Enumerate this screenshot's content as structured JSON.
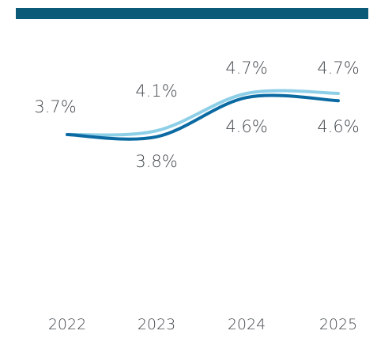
{
  "colors": {
    "top_bar": "#0a5a78",
    "series_light": "#8ecfe8",
    "series_dark": "#0b6aa2"
  },
  "chart_data": {
    "type": "line",
    "x": [
      "2022",
      "2023",
      "2024",
      "2025"
    ],
    "series": [
      {
        "values": [
          3.7,
          4.1,
          4.7,
          4.7
        ],
        "labels": [
          "3.7%",
          "4.1%",
          "4.7%",
          "4.7%"
        ]
      },
      {
        "values": [
          3.7,
          3.8,
          4.6,
          4.6
        ],
        "labels": [
          "",
          "3.8%",
          "4.6%",
          "4.6%"
        ]
      }
    ],
    "tick_labels": [
      "2022",
      "2023",
      "2024",
      "2025"
    ],
    "grid": false,
    "legend": "none"
  }
}
